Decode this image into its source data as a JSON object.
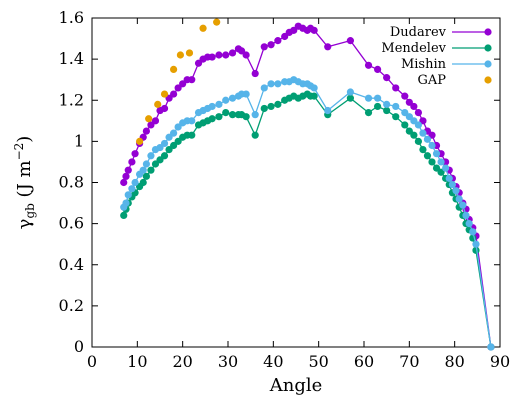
{
  "chart_data": {
    "type": "line",
    "xlabel": "Angle",
    "ylabel": {
      "base": "γ",
      "sub": "gb",
      "unit_open": " (J m",
      "unit_sup": "−2",
      "unit_close": ")"
    },
    "xlim": [
      0,
      90
    ],
    "ylim": [
      0,
      1.6
    ],
    "xticks": [
      0,
      10,
      20,
      30,
      40,
      50,
      60,
      70,
      80,
      90
    ],
    "yticks": [
      0,
      0.2,
      0.4,
      0.6,
      0.8,
      1.0,
      1.2,
      1.4,
      1.6
    ],
    "xtick_labels": [
      "0",
      "10",
      "20",
      "30",
      "40",
      "50",
      "60",
      "70",
      "80",
      "90"
    ],
    "ytick_labels": [
      "0",
      "0.2",
      "0.4",
      "0.6",
      "0.8",
      "1",
      "1.2",
      "1.4",
      "1.6"
    ],
    "grid": false,
    "legend_position": "top-right",
    "series": [
      {
        "name": "Dudarev",
        "color": "#9400d3",
        "line": true,
        "x": [
          7,
          7.5,
          8,
          8.8,
          9.5,
          10.5,
          11.3,
          12,
          13,
          14,
          15,
          16,
          17,
          18,
          19,
          20,
          21,
          22,
          23.5,
          24.5,
          25.5,
          26.5,
          28,
          29.5,
          31,
          32.3,
          33,
          34,
          36,
          38,
          39.5,
          41,
          42.5,
          43.5,
          44.5,
          45.5,
          46.5,
          47.5,
          48.2,
          49,
          52,
          57,
          61,
          63,
          65,
          67,
          69,
          70,
          71,
          72,
          73,
          74,
          75,
          76,
          77,
          78,
          78.8,
          79.5,
          80.3,
          81,
          81.8,
          82.5,
          83.2,
          84,
          84.7,
          88
        ],
        "values": [
          0.8,
          0.83,
          0.86,
          0.9,
          0.94,
          0.99,
          1.02,
          1.05,
          1.08,
          1.1,
          1.15,
          1.16,
          1.21,
          1.23,
          1.26,
          1.28,
          1.3,
          1.3,
          1.38,
          1.4,
          1.41,
          1.41,
          1.42,
          1.42,
          1.43,
          1.45,
          1.44,
          1.42,
          1.33,
          1.46,
          1.47,
          1.49,
          1.51,
          1.53,
          1.54,
          1.56,
          1.55,
          1.54,
          1.55,
          1.54,
          1.46,
          1.49,
          1.37,
          1.35,
          1.31,
          1.26,
          1.22,
          1.19,
          1.17,
          1.14,
          1.1,
          1.05,
          1.03,
          0.98,
          0.94,
          0.9,
          0.86,
          0.82,
          0.78,
          0.75,
          0.7,
          0.67,
          0.62,
          0.58,
          0.54,
          0.0
        ]
      },
      {
        "name": "Mendelev",
        "color": "#009e73",
        "line": true,
        "x": [
          7,
          7.5,
          8,
          8.8,
          9.5,
          10.5,
          11.3,
          12,
          13,
          14,
          15,
          16,
          17,
          18,
          19,
          20,
          21,
          22,
          23.5,
          24.5,
          25.5,
          26.5,
          28,
          29.5,
          31,
          32.3,
          33,
          34,
          36,
          38,
          39.5,
          41,
          42.5,
          43.5,
          44.5,
          45.5,
          46.5,
          47.5,
          48.2,
          49,
          52,
          57,
          61,
          63,
          65,
          67,
          69,
          70,
          71,
          72,
          73,
          74,
          75,
          76,
          77,
          78,
          78.8,
          79.5,
          80.3,
          81,
          81.8,
          82.5,
          83.2,
          84,
          84.7,
          88
        ],
        "values": [
          0.64,
          0.67,
          0.7,
          0.73,
          0.75,
          0.78,
          0.8,
          0.83,
          0.86,
          0.89,
          0.91,
          0.93,
          0.96,
          0.98,
          1.0,
          1.02,
          1.03,
          1.03,
          1.08,
          1.09,
          1.1,
          1.11,
          1.12,
          1.14,
          1.13,
          1.13,
          1.13,
          1.12,
          1.03,
          1.16,
          1.17,
          1.18,
          1.2,
          1.21,
          1.22,
          1.21,
          1.22,
          1.23,
          1.22,
          1.22,
          1.13,
          1.21,
          1.14,
          1.17,
          1.15,
          1.12,
          1.08,
          1.05,
          1.03,
          1.0,
          0.96,
          0.93,
          0.9,
          0.87,
          0.85,
          0.82,
          0.79,
          0.75,
          0.72,
          0.68,
          0.64,
          0.6,
          0.57,
          0.53,
          0.47,
          0.0
        ]
      },
      {
        "name": "Mishin",
        "color": "#56b4e9",
        "line": true,
        "x": [
          7,
          7.5,
          8,
          8.8,
          9.5,
          10.5,
          11.3,
          12,
          13,
          14,
          15,
          16,
          17,
          18,
          19,
          20,
          21,
          22,
          23.5,
          24.5,
          25.5,
          26.5,
          28,
          29.5,
          31,
          32.3,
          33,
          34,
          36,
          38,
          39.5,
          41,
          42.5,
          43.5,
          44.5,
          45.5,
          46.5,
          47.5,
          48.2,
          49,
          52,
          57,
          61,
          63,
          65,
          67,
          69,
          70,
          71,
          72,
          73,
          74,
          75,
          76,
          77,
          78,
          78.8,
          79.5,
          80.3,
          81,
          81.8,
          82.5,
          83.2,
          84,
          84.7,
          88
        ],
        "values": [
          0.68,
          0.7,
          0.74,
          0.77,
          0.8,
          0.84,
          0.86,
          0.89,
          0.93,
          0.96,
          0.97,
          0.99,
          1.02,
          1.04,
          1.07,
          1.09,
          1.1,
          1.1,
          1.14,
          1.15,
          1.16,
          1.17,
          1.18,
          1.2,
          1.21,
          1.22,
          1.23,
          1.23,
          1.13,
          1.26,
          1.28,
          1.28,
          1.29,
          1.29,
          1.3,
          1.29,
          1.28,
          1.28,
          1.27,
          1.26,
          1.15,
          1.24,
          1.21,
          1.21,
          1.18,
          1.17,
          1.14,
          1.12,
          1.1,
          1.08,
          1.04,
          1.01,
          0.98,
          0.94,
          0.9,
          0.87,
          0.82,
          0.79,
          0.76,
          0.72,
          0.69,
          0.64,
          0.6,
          0.56,
          0.5,
          0.0
        ]
      },
      {
        "name": "GAP",
        "color": "#e69f00",
        "line": false,
        "x": [
          10.5,
          12.5,
          14.5,
          16,
          18,
          19.5,
          21.5,
          24.5,
          27.5
        ],
        "values": [
          1.0,
          1.11,
          1.18,
          1.23,
          1.35,
          1.42,
          1.43,
          1.55,
          1.58
        ]
      }
    ]
  }
}
